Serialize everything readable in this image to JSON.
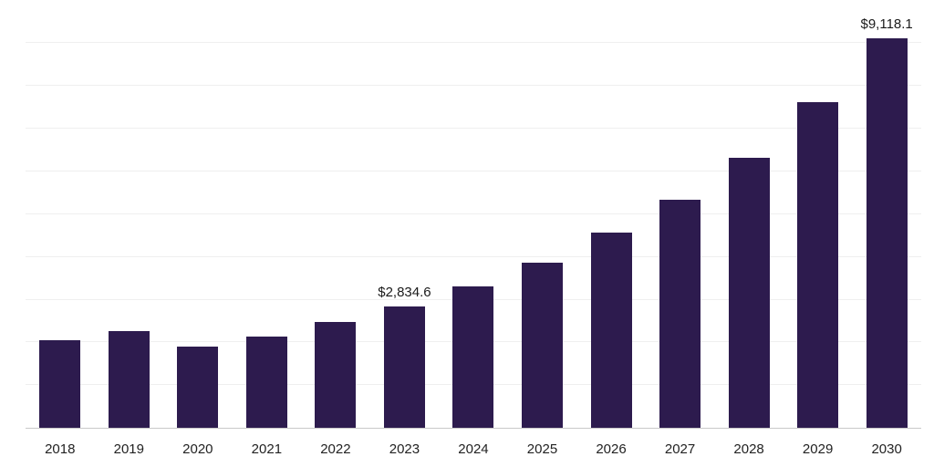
{
  "chart_data": {
    "type": "bar",
    "title": "",
    "xlabel": "",
    "ylabel": "",
    "categories": [
      "2018",
      "2019",
      "2020",
      "2021",
      "2022",
      "2023",
      "2024",
      "2025",
      "2026",
      "2027",
      "2028",
      "2029",
      "2030"
    ],
    "values": [
      2050,
      2270,
      1900,
      2140,
      2480,
      2834.6,
      3300,
      3870,
      4560,
      5330,
      6330,
      7620,
      9118.1
    ],
    "annotations": [
      {
        "category": "2023",
        "text": "$2,834.6"
      },
      {
        "category": "2030",
        "text": "$9,118.1"
      }
    ],
    "bar_color": "#2d1b4e",
    "ylim": [
      0,
      9800
    ],
    "grid_interval": 1000,
    "grid": true,
    "legend": "none",
    "axis_labels_shown": "x-only"
  }
}
